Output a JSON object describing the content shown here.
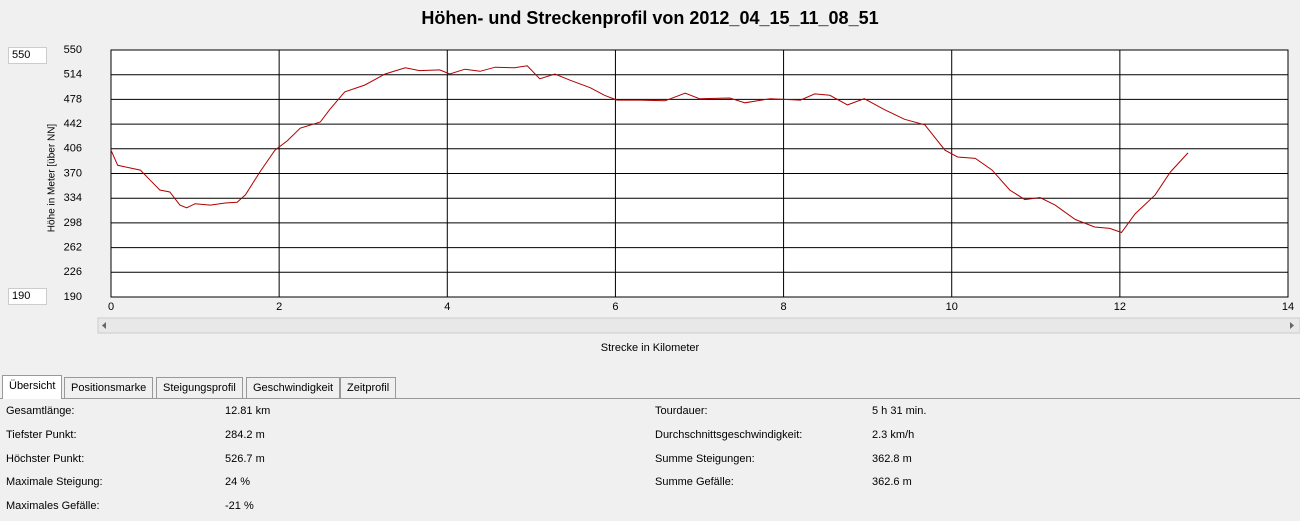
{
  "chart_data": {
    "type": "line",
    "title": "Höhen- und Streckenprofil von 2012_04_15_11_08_51",
    "y_label": "Höhe in Meter [über NN]",
    "x_label": "Strecke in Kilometer",
    "x": [
      0,
      0.08,
      0.23,
      0.35,
      0.46,
      0.58,
      0.7,
      0.82,
      0.9,
      1.0,
      1.18,
      1.36,
      1.5,
      1.6,
      1.77,
      1.95,
      2.1,
      2.25,
      2.49,
      2.6,
      2.78,
      3.02,
      3.26,
      3.5,
      3.67,
      3.91,
      4.03,
      4.21,
      4.39,
      4.57,
      4.8,
      4.95,
      5.1,
      5.28,
      5.46,
      5.7,
      5.87,
      6.02,
      6.29,
      6.59,
      6.83,
      7.0,
      7.36,
      7.54,
      7.84,
      8.2,
      8.37,
      8.55,
      8.76,
      8.96,
      9.2,
      9.44,
      9.68,
      9.92,
      10.07,
      10.28,
      10.48,
      10.69,
      10.87,
      11.05,
      11.23,
      11.47,
      11.7,
      11.88,
      12.02,
      12.18,
      12.42,
      12.6,
      12.81
    ],
    "values": [
      404,
      382,
      378,
      375,
      361,
      346,
      343,
      324,
      320,
      326,
      324,
      327,
      328,
      339,
      372,
      404,
      418,
      436,
      445,
      463,
      489,
      499,
      515,
      524,
      520,
      521,
      515,
      522,
      519,
      525,
      524,
      527,
      508,
      515,
      506,
      495,
      484,
      477,
      477,
      476,
      487,
      479,
      480,
      473,
      479,
      477,
      486,
      484,
      470,
      479,
      463,
      449,
      441,
      404,
      394,
      392,
      375,
      346,
      332,
      335,
      324,
      303,
      292,
      290,
      284,
      311,
      339,
      372,
      400
    ],
    "color": "#b00000",
    "xlim": [
      0,
      14
    ],
    "ylim": [
      190,
      550
    ],
    "xticks": [
      0,
      2,
      4,
      6,
      8,
      10,
      12,
      14
    ],
    "yticks": [
      190,
      226,
      262,
      298,
      334,
      370,
      406,
      442,
      478,
      514,
      550
    ],
    "grid": true
  },
  "range_inputs": {
    "max": "550",
    "min": "190"
  },
  "tabs": [
    "Übersicht",
    "Positionsmarke",
    "Steigungsprofil",
    "Geschwindigkeit",
    "Zeitprofil"
  ],
  "selected_tab": 0,
  "summary": {
    "left": [
      {
        "label": "Gesamtlänge:",
        "value": "12.81 km"
      },
      {
        "label": "Tiefster Punkt:",
        "value": "284.2 m"
      },
      {
        "label": "Höchster Punkt:",
        "value": "526.7 m"
      },
      {
        "label": "Maximale Steigung:",
        "value": "24 %"
      },
      {
        "label": "Maximales Gefälle:",
        "value": "-21 %"
      }
    ],
    "right": [
      {
        "label": "Tourdauer:",
        "value": "5 h 31 min."
      },
      {
        "label": "Durchschnittsgeschwindigkeit:",
        "value": "2.3 km/h"
      },
      {
        "label": "Summe Steigungen:",
        "value": "362.8 m"
      },
      {
        "label": "Summe Gefälle:",
        "value": "362.6 m"
      }
    ]
  }
}
